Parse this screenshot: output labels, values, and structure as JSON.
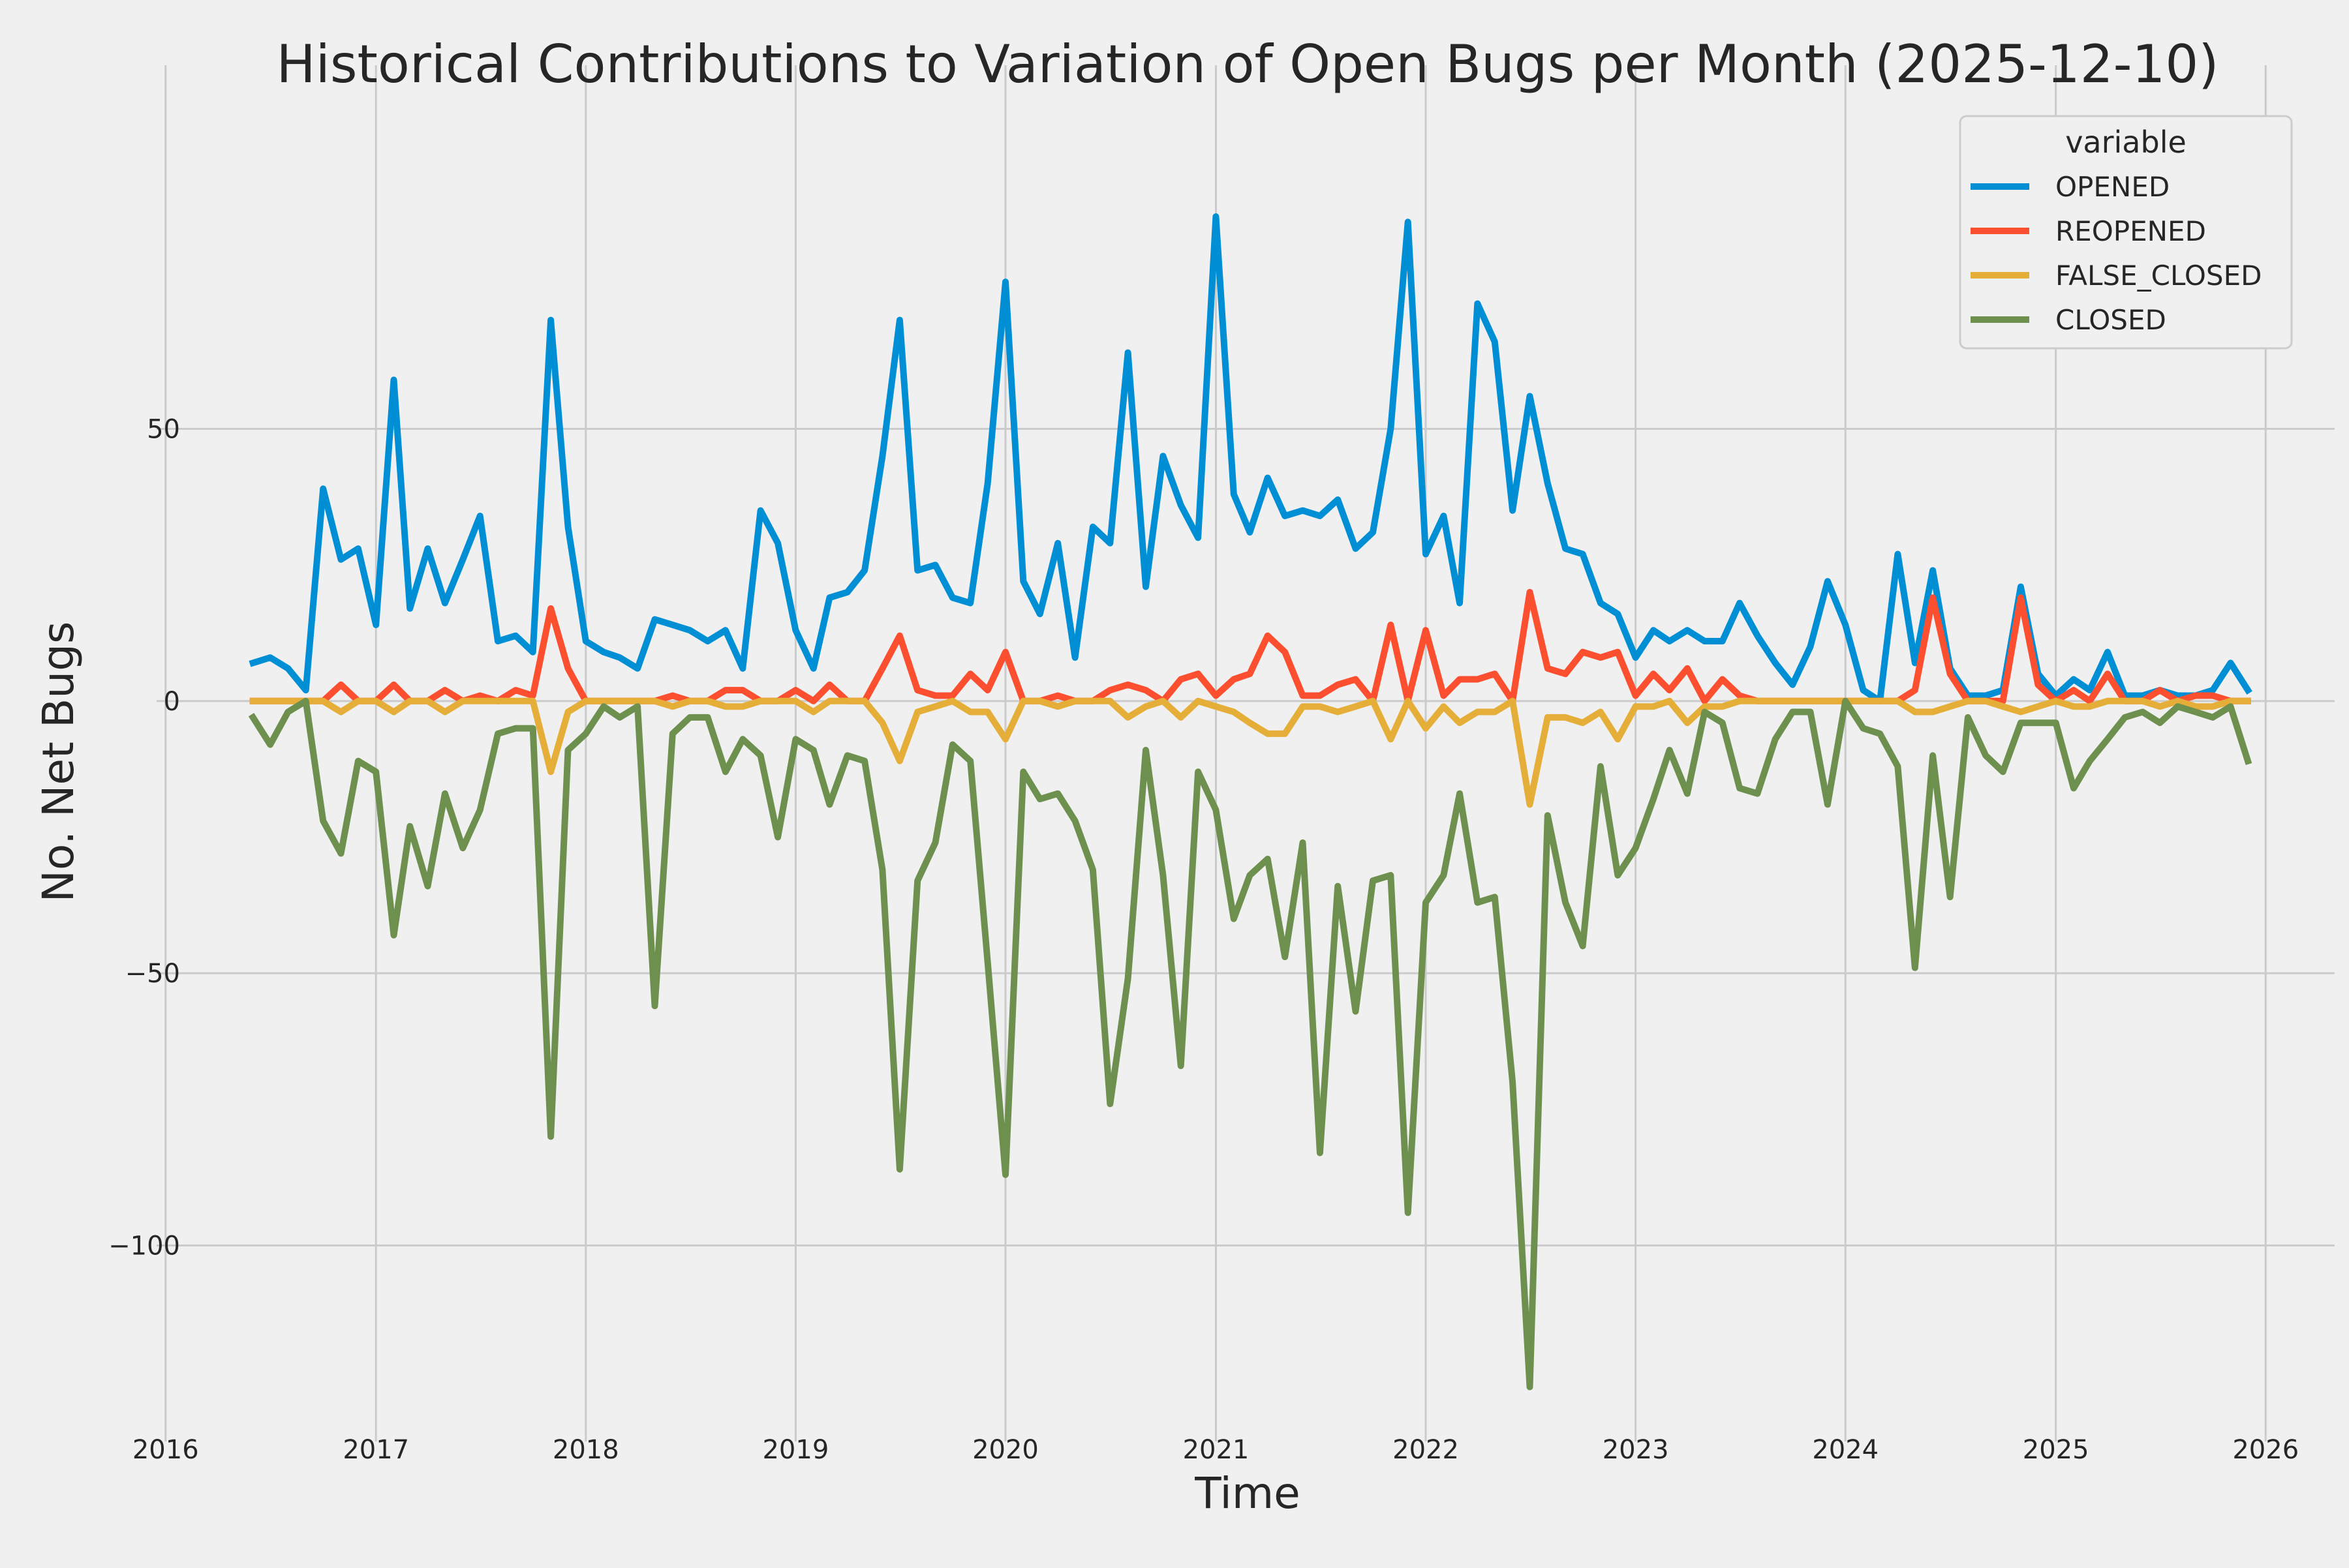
{
  "chart_data": {
    "type": "line",
    "title": "Historical Contributions to Variation of Open Bugs per Month (2025-12-10)",
    "xlabel": "Time",
    "ylabel": "No. Net Bugs",
    "xlim": [
      "2015-11-01",
      "2026-05-01"
    ],
    "ylim": [
      -136,
      112
    ],
    "x_ticks": [
      "2016",
      "2017",
      "2018",
      "2019",
      "2020",
      "2021",
      "2022",
      "2023",
      "2024",
      "2025",
      "2026"
    ],
    "y_ticks": [
      50,
      0,
      -50,
      -100
    ],
    "y_tick_labels": [
      "50",
      "0",
      "−50",
      "−100"
    ],
    "grid": true,
    "legend": {
      "title": "variable",
      "position": "top-right"
    },
    "start_month": "2016-06",
    "series": [
      {
        "name": "OPENED",
        "color": "#008fd5",
        "values": [
          7,
          8,
          6,
          2,
          39,
          26,
          28,
          14,
          59,
          17,
          28,
          18,
          26,
          34,
          11,
          12,
          9,
          70,
          32,
          11,
          9,
          8,
          6,
          15,
          14,
          13,
          11,
          13,
          6,
          35,
          29,
          13,
          6,
          19,
          20,
          24,
          45,
          70,
          24,
          25,
          19,
          18,
          40,
          77,
          22,
          16,
          29,
          8,
          32,
          29,
          64,
          21,
          45,
          36,
          30,
          89,
          38,
          31,
          41,
          34,
          35,
          34,
          37,
          28,
          31,
          50,
          88,
          27,
          34,
          18,
          73,
          66,
          35,
          56,
          40,
          28,
          27,
          18,
          16,
          8,
          13,
          11,
          13,
          11,
          11,
          18,
          12,
          7,
          3,
          10,
          22,
          14,
          2,
          0,
          27,
          7,
          24,
          6,
          1,
          1,
          2,
          21,
          5,
          1,
          4,
          2,
          9,
          1,
          1,
          2,
          1,
          1,
          2,
          7,
          2
        ]
      },
      {
        "name": "REOPENED",
        "color": "#fc4f30",
        "values": [
          0,
          0,
          0,
          0,
          0,
          3,
          0,
          0,
          3,
          0,
          0,
          2,
          0,
          1,
          0,
          2,
          1,
          17,
          6,
          0,
          0,
          0,
          0,
          0,
          1,
          0,
          0,
          2,
          2,
          0,
          0,
          2,
          0,
          3,
          0,
          0,
          6,
          12,
          2,
          1,
          1,
          5,
          2,
          9,
          0,
          0,
          1,
          0,
          0,
          2,
          3,
          2,
          0,
          4,
          5,
          1,
          4,
          5,
          12,
          9,
          1,
          1,
          3,
          4,
          0,
          14,
          0,
          13,
          1,
          4,
          4,
          5,
          0,
          20,
          6,
          5,
          9,
          8,
          9,
          1,
          5,
          2,
          6,
          0,
          4,
          1,
          0,
          0,
          0,
          0,
          0,
          0,
          0,
          0,
          0,
          2,
          19,
          5,
          0,
          0,
          0,
          19,
          3,
          0,
          2,
          0,
          5,
          0,
          0,
          2,
          0,
          1,
          1,
          0,
          0
        ]
      },
      {
        "name": "FALSE_CLOSED",
        "color": "#e5ae38",
        "values": [
          0,
          0,
          0,
          0,
          0,
          -2,
          0,
          0,
          -2,
          0,
          0,
          -2,
          0,
          0,
          0,
          0,
          0,
          -13,
          -2,
          0,
          0,
          0,
          0,
          0,
          -1,
          0,
          0,
          -1,
          -1,
          0,
          0,
          0,
          -2,
          0,
          0,
          0,
          -4,
          -11,
          -2,
          -1,
          0,
          -2,
          -2,
          -7,
          0,
          0,
          -1,
          0,
          0,
          0,
          -3,
          -1,
          0,
          -3,
          0,
          -1,
          -2,
          -4,
          -6,
          -6,
          -1,
          -1,
          -2,
          -1,
          0,
          -7,
          0,
          -5,
          -1,
          -4,
          -2,
          -2,
          0,
          -19,
          -3,
          -3,
          -4,
          -2,
          -7,
          -1,
          -1,
          0,
          -4,
          -1,
          -1,
          0,
          0,
          0,
          0,
          0,
          0,
          0,
          0,
          0,
          0,
          -2,
          -2,
          -1,
          0,
          0,
          -1,
          -2,
          -1,
          0,
          -1,
          -1,
          0,
          0,
          0,
          -1,
          0,
          -1,
          -1,
          0,
          0
        ]
      },
      {
        "name": "CLOSED",
        "color": "#6d904f",
        "values": [
          -3,
          -8,
          -2,
          0,
          -22,
          -28,
          -11,
          -13,
          -43,
          -23,
          -34,
          -17,
          -27,
          -20,
          -6,
          -5,
          -5,
          -80,
          -9,
          -6,
          -1,
          -3,
          -1,
          -56,
          -6,
          -3,
          -3,
          -13,
          -7,
          -10,
          -25,
          -7,
          -9,
          -19,
          -10,
          -11,
          -31,
          -86,
          -33,
          -26,
          -8,
          -11,
          -48,
          -87,
          -13,
          -18,
          -17,
          -22,
          -31,
          -74,
          -51,
          -9,
          -32,
          -67,
          -13,
          -20,
          -40,
          -32,
          -29,
          -47,
          -26,
          -83,
          -34,
          -57,
          -33,
          -32,
          -94,
          -37,
          -32,
          -17,
          -37,
          -36,
          -70,
          -126,
          -21,
          -37,
          -45,
          -12,
          -32,
          -27,
          -18,
          -9,
          -17,
          -2,
          -4,
          -16,
          -17,
          -7,
          -2,
          -2,
          -19,
          0,
          -5,
          -6,
          -12,
          -49,
          -10,
          -36,
          -3,
          -10,
          -13,
          -4,
          -4,
          -4,
          -16,
          -11,
          -7,
          -3,
          -2,
          -4,
          -1,
          -2,
          -3,
          -1,
          -11
        ]
      }
    ]
  }
}
